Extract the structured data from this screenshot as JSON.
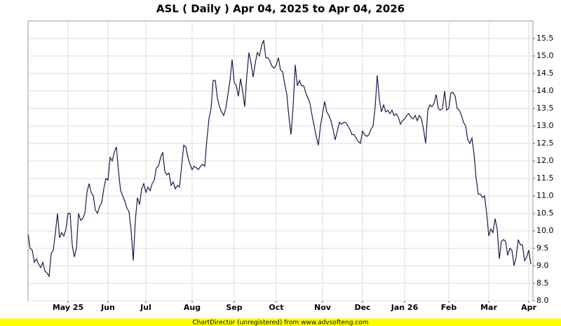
{
  "chart_data": {
    "type": "line",
    "title": "ASL ( Daily ) Apr 04, 2025 to Apr 04, 2026",
    "footer": "ChartDirector (unregistered) from www.advsofteng.com",
    "grid": true,
    "series": [
      {
        "color": "#1a1a4e",
        "values": [
          9.9,
          9.5,
          9.45,
          9.1,
          9.2,
          9.05,
          8.95,
          9.1,
          8.85,
          8.8,
          8.7,
          9.35,
          9.45,
          9.95,
          10.5,
          9.8,
          9.95,
          9.85,
          10.05,
          10.5,
          10.5,
          9.6,
          9.25,
          9.5,
          10.5,
          10.3,
          10.35,
          10.5,
          11.1,
          11.35,
          11.1,
          11.0,
          10.6,
          10.5,
          10.7,
          10.8,
          11.2,
          11.5,
          11.45,
          12.1,
          12.0,
          12.25,
          12.4,
          11.7,
          11.15,
          11.0,
          10.85,
          10.65,
          10.55,
          10.0,
          9.15,
          10.3,
          10.95,
          10.75,
          11.2,
          11.35,
          11.1,
          11.25,
          11.15,
          11.35,
          11.45,
          11.8,
          11.85,
          12.1,
          12.25,
          11.7,
          11.6,
          11.65,
          11.3,
          11.4,
          11.2,
          11.3,
          11.25,
          11.85,
          12.45,
          12.4,
          12.1,
          11.9,
          11.75,
          11.85,
          11.8,
          11.75,
          11.85,
          11.9,
          11.85,
          12.6,
          13.2,
          13.5,
          14.3,
          14.3,
          13.8,
          13.55,
          13.4,
          13.3,
          13.5,
          13.9,
          14.3,
          14.9,
          14.25,
          14.15,
          13.85,
          14.35,
          14.0,
          13.55,
          14.45,
          15.1,
          14.8,
          14.4,
          14.8,
          15.1,
          15.0,
          15.3,
          15.45,
          14.95,
          14.95,
          14.85,
          14.7,
          14.65,
          14.75,
          14.95,
          14.6,
          14.55,
          14.2,
          13.9,
          13.25,
          12.75,
          13.55,
          14.75,
          14.15,
          14.3,
          14.15,
          14.15,
          13.95,
          13.8,
          13.65,
          13.3,
          13.0,
          12.7,
          12.45,
          13.0,
          13.35,
          13.7,
          13.4,
          13.3,
          13.15,
          12.9,
          12.6,
          12.85,
          13.1,
          13.05,
          13.1,
          13.1,
          13.0,
          12.9,
          12.75,
          12.75,
          12.65,
          12.55,
          12.5,
          12.85,
          12.75,
          12.7,
          12.75,
          12.9,
          13.0,
          13.55,
          14.45,
          13.75,
          13.4,
          13.6,
          13.4,
          13.45,
          13.35,
          13.45,
          13.3,
          13.35,
          13.25,
          13.05,
          13.15,
          13.2,
          13.3,
          13.35,
          13.25,
          13.2,
          13.3,
          13.15,
          13.3,
          13.2,
          12.9,
          12.5,
          13.45,
          13.6,
          13.55,
          13.65,
          13.9,
          13.5,
          13.45,
          13.5,
          14.0,
          13.45,
          13.5,
          13.95,
          13.95,
          13.85,
          13.5,
          13.45,
          13.3,
          13.1,
          13.0,
          12.6,
          12.5,
          12.65,
          12.2,
          11.5,
          11.05,
          11.05,
          10.95,
          11.0,
          10.5,
          9.85,
          10.05,
          9.95,
          10.35,
          10.05,
          9.2,
          9.7,
          9.75,
          9.7,
          9.3,
          9.5,
          9.45,
          9.0,
          9.25,
          9.75,
          9.6,
          9.6,
          9.15,
          9.25,
          9.45,
          9.05
        ]
      }
    ],
    "xlim": [
      0,
      239
    ],
    "xticks": [
      {
        "value": 19,
        "label": "May 25"
      },
      {
        "value": 38,
        "label": "Jun"
      },
      {
        "value": 56,
        "label": "Jul"
      },
      {
        "value": 78,
        "label": "Aug"
      },
      {
        "value": 98,
        "label": "Sep"
      },
      {
        "value": 118,
        "label": "Oct"
      },
      {
        "value": 140,
        "label": "Nov"
      },
      {
        "value": 159,
        "label": "Dec"
      },
      {
        "value": 179,
        "label": "Jan 26"
      },
      {
        "value": 200,
        "label": "Feb"
      },
      {
        "value": 219,
        "label": "Mar"
      },
      {
        "value": 238,
        "label": "Apr"
      }
    ],
    "ylim": [
      8.0,
      16.0
    ],
    "yticks": [
      {
        "value": 8,
        "label": "8.0"
      },
      8.5,
      {
        "value": 9,
        "label": "9.0"
      },
      9.5,
      {
        "value": 10,
        "label": "10.0"
      },
      10.5,
      {
        "value": 11,
        "label": "11.0"
      },
      11.5,
      {
        "value": 12,
        "label": "12.0"
      },
      12.5,
      {
        "value": 13,
        "label": "13.0"
      },
      13.5,
      {
        "value": 14,
        "label": "14.0"
      },
      14.5,
      {
        "value": 15,
        "label": "15.0"
      },
      15.5
    ]
  }
}
